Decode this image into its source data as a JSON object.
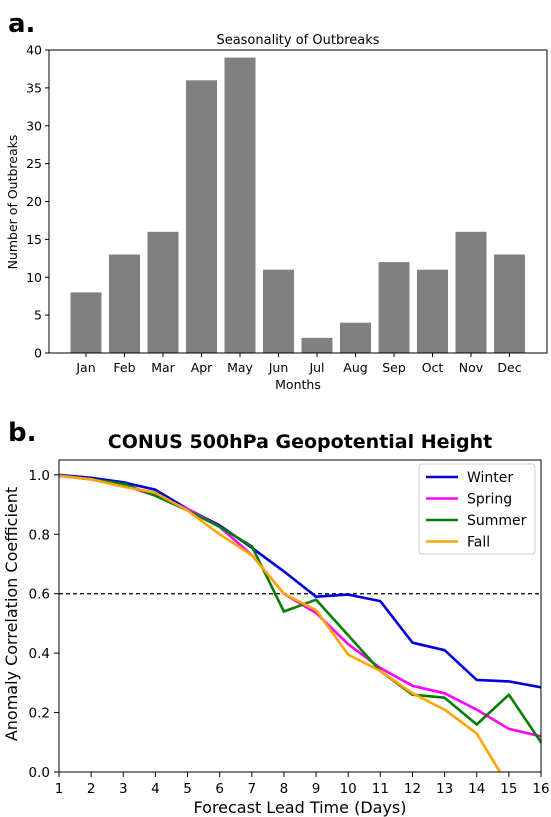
{
  "panels": {
    "a_label": "a.",
    "b_label": "b."
  },
  "chart_data": [
    {
      "type": "bar",
      "title": "Seasonality of Outbreaks",
      "xlabel": "Months",
      "ylabel": "Number of Outbreaks",
      "categories": [
        "Jan",
        "Feb",
        "Mar",
        "Apr",
        "May",
        "Jun",
        "Jul",
        "Aug",
        "Sep",
        "Oct",
        "Nov",
        "Dec"
      ],
      "values": [
        8,
        13,
        16,
        36,
        39,
        11,
        2,
        4,
        12,
        11,
        16,
        13
      ],
      "ylim": [
        0,
        40
      ],
      "yticks": [
        "0",
        "5",
        "10",
        "15",
        "20",
        "25",
        "30",
        "35",
        "40"
      ],
      "bar_color": "#808080",
      "grid": false
    },
    {
      "type": "line",
      "title": "CONUS 500hPa Geopotential Height",
      "xlabel": "Forecast Lead Time (Days)",
      "ylabel": "Anomaly Correlation Coefficient",
      "x": [
        1,
        2,
        3,
        4,
        5,
        6,
        7,
        8,
        9,
        10,
        11,
        12,
        13,
        14,
        15,
        16
      ],
      "xlim": [
        1,
        16
      ],
      "ylim": [
        0,
        1.05
      ],
      "xticks": [
        "1",
        "2",
        "3",
        "4",
        "5",
        "6",
        "7",
        "8",
        "9",
        "10",
        "11",
        "12",
        "13",
        "14",
        "15",
        "16"
      ],
      "yticks": [
        "0.0",
        "0.2",
        "0.4",
        "0.6",
        "0.8",
        "1.0"
      ],
      "reference_line": 0.6,
      "legend_position": "top-right",
      "grid": false,
      "series": [
        {
          "name": "Winter",
          "color": "#0000dd",
          "values": [
            1.0,
            0.99,
            0.975,
            0.95,
            0.885,
            0.83,
            0.755,
            0.675,
            0.59,
            0.597,
            0.575,
            0.435,
            0.41,
            0.31,
            0.305,
            0.285
          ]
        },
        {
          "name": "Spring",
          "color": "#ff00ff",
          "values": [
            0.997,
            0.985,
            0.965,
            0.93,
            0.885,
            0.825,
            0.73,
            0.6,
            0.535,
            0.43,
            0.35,
            0.29,
            0.265,
            0.21,
            0.145,
            0.12
          ]
        },
        {
          "name": "Summer",
          "color": "#007f00",
          "values": [
            0.997,
            0.985,
            0.97,
            0.93,
            0.88,
            0.825,
            0.76,
            0.54,
            0.58,
            0.46,
            0.34,
            0.26,
            0.25,
            0.16,
            0.26,
            0.1
          ]
        },
        {
          "name": "Fall",
          "color": "#ffa500",
          "values": [
            0.997,
            0.985,
            0.96,
            0.94,
            0.88,
            0.8,
            0.73,
            0.6,
            0.545,
            0.395,
            0.34,
            0.265,
            0.21,
            0.13,
            -0.05,
            null
          ]
        }
      ]
    }
  ]
}
